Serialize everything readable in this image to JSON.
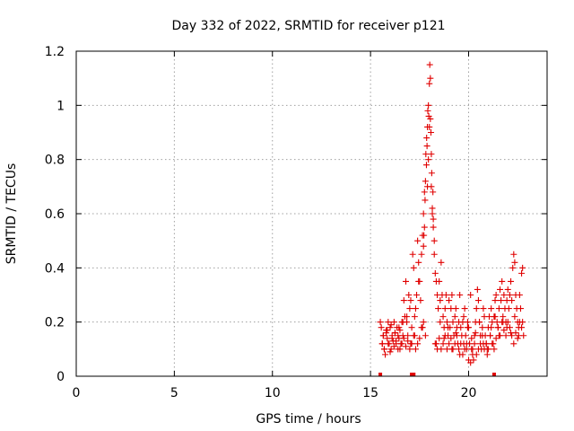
{
  "chart_data": {
    "type": "scatter",
    "title": "Day 332 of 2022, SRMTID for receiver p121",
    "xlabel": "GPS time / hours",
    "ylabel": "SRMTID / TECUs",
    "xlim": [
      0,
      24
    ],
    "ylim": [
      0,
      1.2
    ],
    "xticks": [
      0,
      5,
      10,
      15,
      20
    ],
    "xtick_labels": [
      "0",
      "5",
      "10",
      "15",
      "20"
    ],
    "yticks": [
      0,
      0.2,
      0.4,
      0.6,
      0.8,
      1.0,
      1.2
    ],
    "ytick_labels": [
      "0",
      "0.2",
      "0.4",
      "0.6",
      "0.8",
      "1",
      "1.2"
    ],
    "grid": true,
    "series": [
      {
        "name": "SRMTID",
        "marker": "plus",
        "color": "#e00000",
        "x": [
          15.5,
          15.55,
          15.6,
          15.65,
          15.7,
          15.75,
          15.8,
          15.85,
          15.9,
          15.95,
          16.0,
          16.05,
          16.1,
          16.15,
          16.2,
          16.25,
          16.3,
          16.35,
          16.4,
          16.45,
          16.5,
          16.55,
          16.6,
          16.65,
          16.7,
          16.75,
          16.8,
          16.85,
          16.9,
          16.95,
          17.0,
          17.05,
          17.1,
          17.15,
          17.2,
          17.25,
          17.3,
          17.35,
          17.4,
          17.45,
          17.5,
          17.55,
          17.6,
          17.65,
          17.7,
          17.75,
          17.8,
          17.85,
          17.88,
          17.9,
          17.92,
          17.95,
          17.97,
          18.0,
          18.02,
          18.05,
          18.08,
          18.1,
          18.12,
          18.15,
          18.2,
          18.25,
          18.3,
          18.35,
          18.4,
          18.45,
          18.5,
          18.55,
          18.6,
          18.65,
          18.7,
          18.75,
          18.8,
          18.85,
          18.9,
          18.95,
          19.0,
          19.05,
          19.1,
          19.15,
          19.2,
          19.25,
          19.3,
          19.35,
          19.4,
          19.45,
          19.5,
          19.55,
          19.6,
          19.65,
          19.7,
          19.75,
          19.8,
          19.85,
          19.9,
          19.95,
          20.0,
          20.05,
          20.1,
          20.15,
          20.2,
          20.25,
          20.3,
          20.35,
          20.4,
          20.45,
          20.5,
          20.55,
          20.6,
          20.65,
          20.7,
          20.75,
          20.8,
          20.85,
          20.9,
          20.95,
          21.0,
          21.05,
          21.1,
          21.15,
          21.2,
          21.25,
          21.3,
          21.35,
          21.4,
          21.45,
          21.5,
          21.55,
          21.6,
          21.65,
          21.7,
          21.75,
          21.8,
          21.85,
          21.9,
          21.95,
          22.0,
          22.05,
          22.1,
          22.15,
          22.2,
          22.25,
          22.3,
          22.35,
          22.4,
          22.45,
          22.5,
          22.55,
          22.6,
          22.65,
          22.7,
          22.75,
          22.8,
          15.6,
          15.7,
          15.8,
          15.9,
          16.0,
          16.1,
          16.2,
          16.3,
          16.4,
          16.5,
          16.6,
          16.7,
          16.8,
          16.9,
          17.0,
          17.1,
          17.2,
          17.3,
          17.4,
          17.5,
          17.6,
          17.7,
          17.8,
          18.3,
          18.4,
          18.5,
          18.6,
          18.7,
          18.8,
          18.9,
          19.0,
          19.1,
          19.2,
          19.3,
          19.4,
          19.5,
          19.6,
          19.7,
          19.8,
          19.9,
          20.0,
          20.1,
          20.2,
          20.3,
          20.4,
          20.5,
          20.6,
          20.7,
          20.8,
          20.9,
          21.0,
          21.1,
          21.2,
          21.3,
          21.4,
          21.5,
          21.6,
          21.7,
          21.8,
          21.9,
          22.0,
          22.1,
          22.2,
          22.3,
          22.4,
          22.5,
          22.6,
          22.7,
          15.65,
          15.85,
          16.05,
          16.25,
          16.45,
          16.65,
          16.85,
          17.05,
          17.25,
          17.45,
          17.65,
          18.35,
          18.55,
          18.75,
          18.95,
          19.15,
          19.35,
          19.55,
          19.75,
          19.95,
          20.15,
          20.35,
          20.55,
          20.75,
          20.95,
          21.15,
          21.35,
          21.55,
          21.75,
          21.95,
          22.15,
          22.35,
          22.55,
          22.75,
          17.9,
          17.95,
          18.0,
          18.05,
          18.1,
          17.82,
          17.86,
          18.15,
          17.75,
          17.78,
          18.18,
          18.25,
          18.2,
          17.7,
          17.72
        ],
        "y": [
          0.2,
          0.18,
          0.12,
          0.15,
          0.1,
          0.08,
          0.17,
          0.14,
          0.2,
          0.12,
          0.18,
          0.1,
          0.15,
          0.13,
          0.2,
          0.16,
          0.12,
          0.18,
          0.1,
          0.14,
          0.17,
          0.12,
          0.2,
          0.15,
          0.28,
          0.22,
          0.35,
          0.2,
          0.15,
          0.3,
          0.25,
          0.12,
          0.18,
          0.45,
          0.4,
          0.15,
          0.25,
          0.3,
          0.5,
          0.42,
          0.35,
          0.28,
          0.45,
          0.52,
          0.6,
          0.68,
          0.72,
          0.78,
          0.85,
          0.92,
          0.98,
          1.0,
          0.96,
          1.08,
          1.15,
          1.1,
          0.9,
          0.82,
          0.75,
          0.6,
          0.55,
          0.45,
          0.38,
          0.35,
          0.3,
          0.25,
          0.35,
          0.28,
          0.42,
          0.3,
          0.22,
          0.18,
          0.25,
          0.3,
          0.2,
          0.15,
          0.28,
          0.18,
          0.25,
          0.3,
          0.2,
          0.15,
          0.22,
          0.25,
          0.18,
          0.12,
          0.2,
          0.3,
          0.18,
          0.15,
          0.2,
          0.12,
          0.25,
          0.15,
          0.1,
          0.2,
          0.18,
          0.12,
          0.3,
          0.1,
          0.08,
          0.06,
          0.15,
          0.2,
          0.25,
          0.32,
          0.28,
          0.2,
          0.15,
          0.1,
          0.18,
          0.25,
          0.22,
          0.15,
          0.12,
          0.08,
          0.18,
          0.22,
          0.15,
          0.25,
          0.2,
          0.12,
          0.22,
          0.28,
          0.3,
          0.2,
          0.18,
          0.25,
          0.32,
          0.28,
          0.35,
          0.22,
          0.3,
          0.25,
          0.2,
          0.28,
          0.32,
          0.25,
          0.3,
          0.35,
          0.28,
          0.4,
          0.45,
          0.42,
          0.3,
          0.25,
          0.2,
          0.18,
          0.3,
          0.25,
          0.38,
          0.4,
          0.15,
          0.12,
          0.1,
          0.16,
          0.12,
          0.09,
          0.14,
          0.11,
          0.13,
          0.15,
          0.1,
          0.12,
          0.14,
          0.11,
          0.13,
          0.1,
          0.12,
          0.15,
          0.1,
          0.12,
          0.14,
          0.18,
          0.2,
          0.15,
          0.12,
          0.1,
          0.14,
          0.1,
          0.12,
          0.15,
          0.1,
          0.12,
          0.14,
          0.1,
          0.12,
          0.15,
          0.1,
          0.12,
          0.08,
          0.1,
          0.12,
          0.06,
          0.05,
          0.1,
          0.12,
          0.08,
          0.1,
          0.12,
          0.15,
          0.1,
          0.12,
          0.1,
          0.15,
          0.12,
          0.1,
          0.14,
          0.18,
          0.15,
          0.2,
          0.17,
          0.15,
          0.2,
          0.18,
          0.15,
          0.12,
          0.16,
          0.14,
          0.2,
          0.18,
          0.15,
          0.17,
          0.19,
          0.16,
          0.18,
          0.2,
          0.22,
          0.28,
          0.22,
          0.35,
          0.18,
          0.12,
          0.2,
          0.14,
          0.18,
          0.1,
          0.16,
          0.08,
          0.22,
          0.18,
          0.14,
          0.16,
          0.2,
          0.12,
          0.1,
          0.18,
          0.22,
          0.15,
          0.2,
          0.18,
          0.16,
          0.22,
          0.15,
          0.2,
          0.7,
          0.8,
          0.92,
          0.95,
          0.7,
          0.82,
          0.88,
          0.62,
          0.55,
          0.65,
          0.68,
          0.5,
          0.58,
          0.48,
          0.52
        ]
      }
    ],
    "rug_marks": [
      15.5,
      17.1,
      17.2,
      21.3
    ]
  }
}
